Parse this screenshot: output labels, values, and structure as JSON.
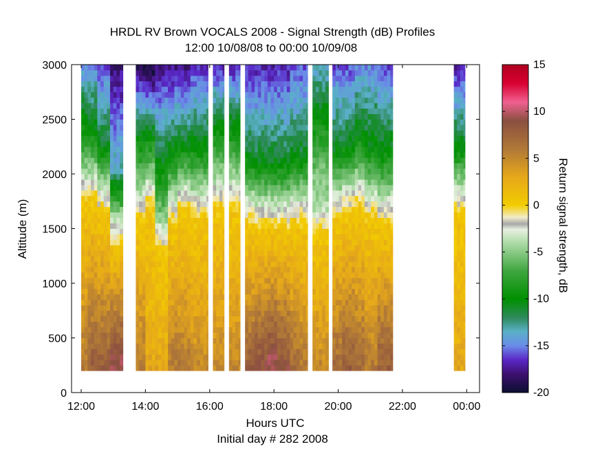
{
  "chart_data": {
    "type": "heatmap",
    "title": "HRDL RV Brown VOCALS 2008 - Signal Strength (dB) Profiles",
    "subtitle": "12:00 10/08/08 to 00:00 10/09/08",
    "xlabel": "Hours UTC",
    "xlabel2": "Initial day # 282  2008",
    "ylabel": "Altitude (m)",
    "colorbar_label": "Return signal strength, dB",
    "xlim": [
      11.7,
      24.4
    ],
    "ylim": [
      0,
      3000
    ],
    "clim": [
      -20,
      15
    ],
    "x_ticks": [
      12,
      14,
      16,
      18,
      20,
      22,
      24
    ],
    "x_tick_labels": [
      "12:00",
      "14:00",
      "16:00",
      "18:00",
      "20:00",
      "22:00",
      "00:00"
    ],
    "y_ticks": [
      0,
      500,
      1000,
      1500,
      2000,
      2500,
      3000
    ],
    "y_tick_labels": [
      "0",
      "500",
      "1000",
      "1500",
      "2000",
      "2500",
      "3000"
    ],
    "cb_ticks": [
      -20,
      -15,
      -10,
      -5,
      0,
      5,
      10,
      15
    ],
    "cb_tick_labels": [
      "-20",
      "-15",
      "-10",
      "-5",
      "0",
      "5",
      "10",
      "15"
    ],
    "data_altitude_range_m": [
      200,
      3000
    ],
    "profile_blocks_hours": [
      [
        12.0,
        13.3
      ],
      [
        13.7,
        15.95
      ],
      [
        16.1,
        16.45
      ],
      [
        16.6,
        16.95
      ],
      [
        17.1,
        19.05
      ],
      [
        19.2,
        19.7
      ],
      [
        19.82,
        21.7
      ],
      [
        23.6,
        23.95
      ]
    ],
    "profiles": [
      {
        "hour": 12.0,
        "pbl_top_m": 1750,
        "mid_level_max_db": -9,
        "upper_level_db": -15,
        "surface_db": 6
      },
      {
        "hour": 12.35,
        "pbl_top_m": 1760,
        "mid_level_max_db": -10,
        "upper_level_db": -15,
        "surface_db": 8
      },
      {
        "hour": 12.7,
        "pbl_top_m": 1650,
        "mid_level_max_db": -11,
        "upper_level_db": -16,
        "surface_db": 8
      },
      {
        "hour": 13.05,
        "pbl_top_m": 1350,
        "mid_level_max_db": -13,
        "upper_level_db": -18,
        "surface_db": 10
      },
      {
        "hour": 13.8,
        "pbl_top_m": 1600,
        "mid_level_max_db": -9,
        "upper_level_db": -19,
        "surface_db": 6
      },
      {
        "hour": 14.15,
        "pbl_top_m": 1700,
        "mid_level_max_db": -10,
        "upper_level_db": -20,
        "surface_db": 3
      },
      {
        "hour": 14.5,
        "pbl_top_m": 1300,
        "mid_level_max_db": -9,
        "upper_level_db": -18,
        "surface_db": 3
      },
      {
        "hour": 14.85,
        "pbl_top_m": 1550,
        "mid_level_max_db": -10,
        "upper_level_db": -18,
        "surface_db": 6
      },
      {
        "hour": 15.2,
        "pbl_top_m": 1650,
        "mid_level_max_db": -11,
        "upper_level_db": -18,
        "surface_db": 6
      },
      {
        "hour": 15.55,
        "pbl_top_m": 1600,
        "mid_level_max_db": -10,
        "upper_level_db": -17,
        "surface_db": 5
      },
      {
        "hour": 15.85,
        "pbl_top_m": 1600,
        "mid_level_max_db": -10,
        "upper_level_db": -17,
        "surface_db": 5
      },
      {
        "hour": 16.25,
        "pbl_top_m": 1700,
        "mid_level_max_db": -9,
        "upper_level_db": -17,
        "surface_db": 5
      },
      {
        "hour": 16.8,
        "pbl_top_m": 1700,
        "mid_level_max_db": -9,
        "upper_level_db": -17,
        "surface_db": 5
      },
      {
        "hour": 17.25,
        "pbl_top_m": 1550,
        "mid_level_max_db": -11,
        "upper_level_db": -17,
        "surface_db": 8
      },
      {
        "hour": 17.6,
        "pbl_top_m": 1500,
        "mid_level_max_db": -11,
        "upper_level_db": -17,
        "surface_db": 9
      },
      {
        "hour": 17.95,
        "pbl_top_m": 1500,
        "mid_level_max_db": -11,
        "upper_level_db": -17,
        "surface_db": 10
      },
      {
        "hour": 18.3,
        "pbl_top_m": 1500,
        "mid_level_max_db": -11,
        "upper_level_db": -17,
        "surface_db": 9
      },
      {
        "hour": 18.65,
        "pbl_top_m": 1550,
        "mid_level_max_db": -11,
        "upper_level_db": -16,
        "surface_db": 7
      },
      {
        "hour": 18.95,
        "pbl_top_m": 1550,
        "mid_level_max_db": -11,
        "upper_level_db": -16,
        "surface_db": 6
      },
      {
        "hour": 19.45,
        "pbl_top_m": 1450,
        "mid_level_max_db": -6,
        "upper_level_db": -14,
        "surface_db": 5
      },
      {
        "hour": 19.95,
        "pbl_top_m": 1600,
        "mid_level_max_db": -11,
        "upper_level_db": -16,
        "surface_db": 7
      },
      {
        "hour": 20.3,
        "pbl_top_m": 1650,
        "mid_level_max_db": -11,
        "upper_level_db": -16,
        "surface_db": 8
      },
      {
        "hour": 20.65,
        "pbl_top_m": 1700,
        "mid_level_max_db": -10,
        "upper_level_db": -15,
        "surface_db": 7
      },
      {
        "hour": 21.0,
        "pbl_top_m": 1600,
        "mid_level_max_db": -10,
        "upper_level_db": -15,
        "surface_db": 6
      },
      {
        "hour": 21.4,
        "pbl_top_m": 1550,
        "mid_level_max_db": -10,
        "upper_level_db": -16,
        "surface_db": 8
      },
      {
        "hour": 23.75,
        "pbl_top_m": 1650,
        "mid_level_max_db": -11,
        "upper_level_db": -17,
        "surface_db": 3
      }
    ],
    "colormap": [
      {
        "db": -20,
        "color": "#0a1030"
      },
      {
        "db": -18,
        "color": "#3e1070"
      },
      {
        "db": -16.5,
        "color": "#5a28c8"
      },
      {
        "db": -15,
        "color": "#6a8ce8"
      },
      {
        "db": -13.5,
        "color": "#5ab0c8"
      },
      {
        "db": -12,
        "color": "#2e8a5a"
      },
      {
        "db": -10,
        "color": "#009000"
      },
      {
        "db": -7,
        "color": "#40a640"
      },
      {
        "db": -4,
        "color": "#aedca8"
      },
      {
        "db": -2.6,
        "color": "#e8f0e0"
      },
      {
        "db": -2.0,
        "color": "#a8a8a8"
      },
      {
        "db": -1.3,
        "color": "#f2ecc8"
      },
      {
        "db": 0,
        "color": "#f2cc00"
      },
      {
        "db": 3,
        "color": "#e6a81a"
      },
      {
        "db": 6,
        "color": "#b07838"
      },
      {
        "db": 9,
        "color": "#8a5040"
      },
      {
        "db": 11,
        "color": "#f06090"
      },
      {
        "db": 13,
        "color": "#d80030"
      },
      {
        "db": 15,
        "color": "#b00020"
      }
    ]
  }
}
